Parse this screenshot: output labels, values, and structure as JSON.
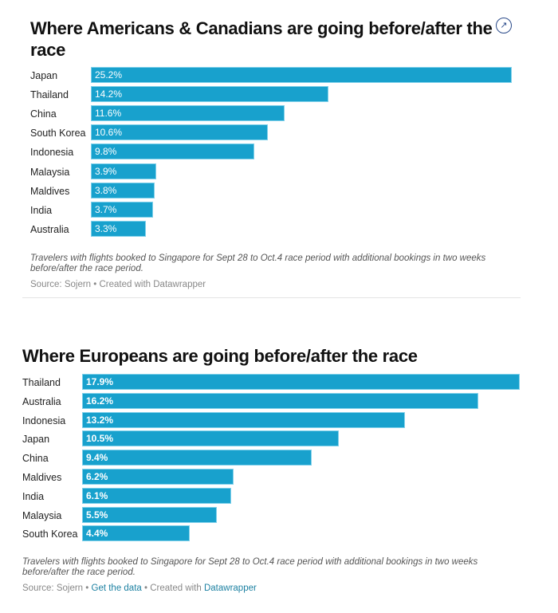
{
  "chart_data": [
    {
      "type": "bar",
      "title": "Where Americans & Canadians are going before/after the race",
      "categories": [
        "Japan",
        "Thailand",
        "China",
        "South Korea",
        "Indonesia",
        "Malaysia",
        "Maldives",
        "India",
        "Australia"
      ],
      "values": [
        25.2,
        14.2,
        11.6,
        10.6,
        9.8,
        3.9,
        3.8,
        3.7,
        3.3
      ],
      "value_labels": [
        "25.2%",
        "14.2%",
        "11.6%",
        "10.6%",
        "9.8%",
        "3.9%",
        "3.8%",
        "3.7%",
        "3.3%"
      ],
      "xlabel": "",
      "ylabel": "",
      "xlim": [
        0,
        25.2
      ],
      "orientation": "horizontal",
      "grid": false,
      "bar_color": "#18a1cd",
      "notes": "Travelers with flights booked to Singapore for Sept 28 to Oct.4 race period with additional bookings in two weeks before/after the race period.",
      "source": "Source: Sojern",
      "credit_sep": " • ",
      "credit": "Created with Datawrapper"
    },
    {
      "type": "bar",
      "title": "Where Europeans are going before/after the race",
      "categories": [
        "Thailand",
        "Australia",
        "Indonesia",
        "Japan",
        "China",
        "Maldives",
        "India",
        "Malaysia",
        "South Korea"
      ],
      "values": [
        17.9,
        16.2,
        13.2,
        10.5,
        9.4,
        6.2,
        6.1,
        5.5,
        4.4
      ],
      "value_labels": [
        "17.9%",
        "16.2%",
        "13.2%",
        "10.5%",
        "9.4%",
        "6.2%",
        "6.1%",
        "5.5%",
        "4.4%"
      ],
      "xlabel": "",
      "ylabel": "",
      "xlim": [
        0,
        17.9
      ],
      "orientation": "horizontal",
      "grid": false,
      "bar_color": "#18a1cd",
      "notes": "Travelers with flights booked to Singapore for Sept 28 to Oct.4 race period with additional bookings in two weeks before/after the race period.",
      "source": "Source: Sojern",
      "get_data": "Get the data",
      "credit_prefix": "Created with ",
      "credit_link": "Datawrapper"
    }
  ],
  "icons": {
    "expand": "↗"
  }
}
